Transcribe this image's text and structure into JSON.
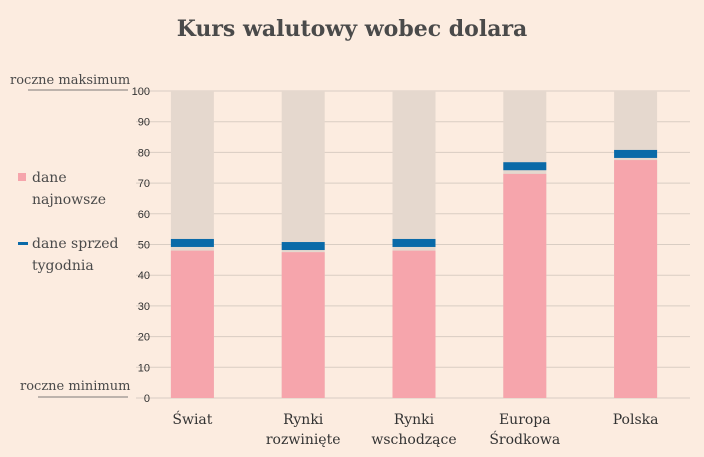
{
  "chart_data": {
    "type": "bar",
    "title": "Kurs walutowy wobec dolara",
    "categories": [
      [
        "Świat"
      ],
      [
        "Rynki",
        "rozwinięte"
      ],
      [
        "Rynki",
        "wschodzące"
      ],
      [
        "Europa",
        "Środkowa"
      ],
      [
        "Polska"
      ]
    ],
    "series": [
      {
        "name": "dane najnowsze",
        "values": [
          48,
          47.5,
          48,
          73,
          77.5
        ]
      },
      {
        "name": "dane sprzed tygodnia",
        "values": [
          50.5,
          49.5,
          50.5,
          75.5,
          79.5
        ]
      }
    ],
    "ylim": [
      0,
      100
    ],
    "yticks": [
      0,
      10,
      20,
      30,
      40,
      50,
      60,
      70,
      80,
      90,
      100
    ],
    "annotations": {
      "max": "roczne maksimum",
      "min": "roczne minimum"
    },
    "legend": {
      "position": "left",
      "items": [
        {
          "lines": [
            "dane",
            "najnowsze"
          ],
          "color": "#f6a5ac"
        },
        {
          "lines": [
            "dane sprzed",
            "tygodnia"
          ],
          "color": "#0a6aa8"
        }
      ]
    },
    "grid": true,
    "colors": {
      "background": "#fcece0",
      "range": "#e5d8ce",
      "latest": "#f6a5ac",
      "previous": "#0a6aa8",
      "grid": "#d9cdc3"
    }
  }
}
